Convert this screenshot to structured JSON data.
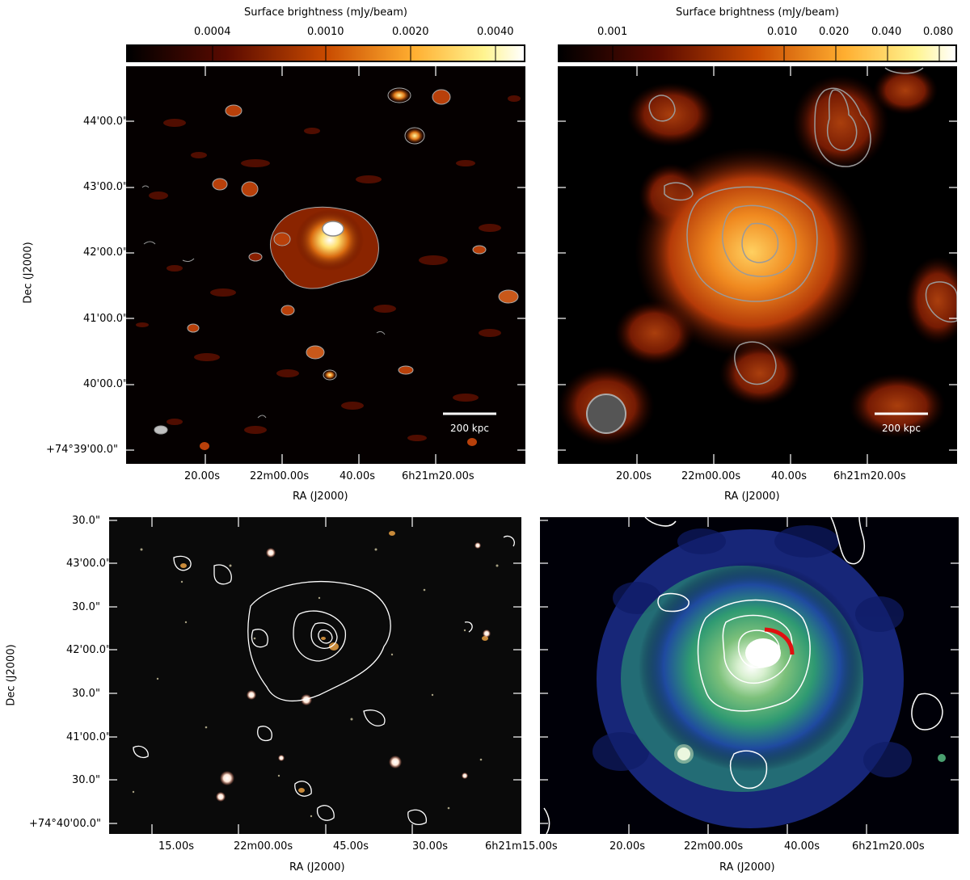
{
  "colors": {
    "background": "#000000",
    "contour_gray": "#9a9a9a",
    "contour_white": "#ffffff",
    "arc_red": "#e01010",
    "xray_blue": "#1d2d8a",
    "xray_green": "#3aa56a"
  },
  "panels": {
    "top_left": {
      "colorbar_title": "Surface brightness (mJy/beam)",
      "colorbar_ticks": [
        "0.0004",
        "0.0010",
        "0.0020",
        "0.0040"
      ],
      "scalebar_label": "200 kpc",
      "y_ticks": [
        "44'00.0\"",
        "43'00.0\"",
        "42'00.0\"",
        "41'00.0\"",
        "40'00.0\"",
        "+74°39'00.0\""
      ],
      "x_ticks": [
        "20.00s",
        "22m00.00s",
        "40.00s",
        "6h21m20.00s"
      ],
      "xlabel": "RA (J2000)",
      "ylabel": "Dec (J2000)"
    },
    "top_right": {
      "colorbar_title": "Surface brightness (mJy/beam)",
      "colorbar_ticks": [
        "0.001",
        "0.010",
        "0.020",
        "0.040",
        "0.080"
      ],
      "scalebar_label": "200 kpc",
      "x_ticks": [
        "20.00s",
        "22m00.00s",
        "40.00s",
        "6h21m20.00s"
      ],
      "xlabel": "RA (J2000)"
    },
    "bottom_left": {
      "y_ticks": [
        "30.0\"",
        "43'00.0\"",
        "30.0\"",
        "42'00.0\"",
        "30.0\"",
        "41'00.0\"",
        "30.0\"",
        "+74°40'00.0\""
      ],
      "x_ticks": [
        "15.00s",
        "22m00.00s",
        "45.00s",
        "30.00s",
        "6h21m15.00s"
      ],
      "xlabel": "RA (J2000)",
      "ylabel": "Dec (J2000)"
    },
    "bottom_right": {
      "x_ticks": [
        "20.00s",
        "22m00.00s",
        "40.00s",
        "6h21m20.00s"
      ],
      "xlabel": "RA (J2000)"
    }
  }
}
